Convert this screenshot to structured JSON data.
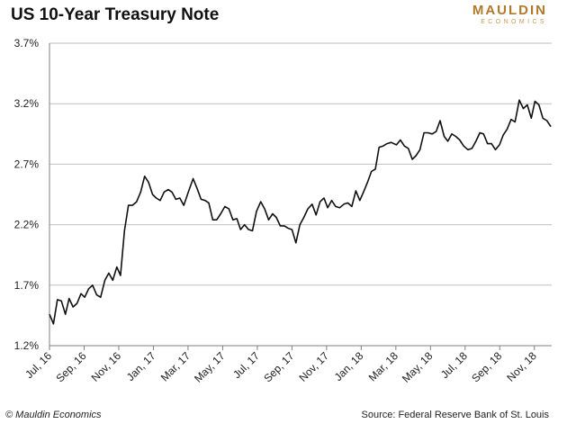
{
  "header": {
    "title": "US 10-Year Treasury Note",
    "logo_main": "MAULDIN",
    "logo_sub": "ECONOMICS"
  },
  "footer": {
    "copyright": "© Mauldin Economics",
    "source": "Source: Federal Reserve Bank of St. Louis"
  },
  "colors": {
    "line": "#111111",
    "grid": "#bfbfbf",
    "axis": "#7f7f7f",
    "brand": "#b07a2c"
  },
  "chart_data": {
    "type": "line",
    "title": "US 10-Year Treasury Note",
    "xlabel": "",
    "ylabel": "",
    "x_unit": "months since Jul 2016",
    "ylim": [
      1.2,
      3.7
    ],
    "yticks": [
      1.2,
      1.7,
      2.2,
      2.7,
      3.2,
      3.7
    ],
    "ytick_labels": [
      "1.2%",
      "1.7%",
      "2.2%",
      "2.7%",
      "3.2%",
      "3.7%"
    ],
    "xticks": [
      "Jul, 16",
      "Sep, 16",
      "Nov, 16",
      "Jan, 17",
      "Mar, 17",
      "May, 17",
      "Jul, 17",
      "Sep, 17",
      "Nov, 17",
      "Jan, 18",
      "Mar, 18",
      "May, 18",
      "Jul, 18",
      "Sep, 18",
      "Nov, 18"
    ],
    "grid": "horizontal",
    "legend": "none",
    "series": [
      {
        "values": [
          [
            "2016-07-01",
            1.46
          ],
          [
            "2016-07-08",
            1.38
          ],
          [
            "2016-07-15",
            1.58
          ],
          [
            "2016-07-22",
            1.57
          ],
          [
            "2016-07-29",
            1.46
          ],
          [
            "2016-08-05",
            1.59
          ],
          [
            "2016-08-12",
            1.52
          ],
          [
            "2016-08-19",
            1.55
          ],
          [
            "2016-08-26",
            1.63
          ],
          [
            "2016-09-02",
            1.6
          ],
          [
            "2016-09-09",
            1.67
          ],
          [
            "2016-09-16",
            1.7
          ],
          [
            "2016-09-23",
            1.62
          ],
          [
            "2016-09-30",
            1.6
          ],
          [
            "2016-10-07",
            1.74
          ],
          [
            "2016-10-14",
            1.8
          ],
          [
            "2016-10-21",
            1.74
          ],
          [
            "2016-10-28",
            1.85
          ],
          [
            "2016-11-04",
            1.78
          ],
          [
            "2016-11-11",
            2.15
          ],
          [
            "2016-11-18",
            2.36
          ],
          [
            "2016-11-25",
            2.36
          ],
          [
            "2016-12-02",
            2.39
          ],
          [
            "2016-12-09",
            2.47
          ],
          [
            "2016-12-16",
            2.6
          ],
          [
            "2016-12-23",
            2.55
          ],
          [
            "2016-12-30",
            2.45
          ],
          [
            "2017-01-06",
            2.42
          ],
          [
            "2017-01-13",
            2.4
          ],
          [
            "2017-01-20",
            2.47
          ],
          [
            "2017-01-27",
            2.49
          ],
          [
            "2017-02-03",
            2.47
          ],
          [
            "2017-02-10",
            2.41
          ],
          [
            "2017-02-17",
            2.42
          ],
          [
            "2017-02-24",
            2.36
          ],
          [
            "2017-03-03",
            2.49
          ],
          [
            "2017-03-10",
            2.58
          ],
          [
            "2017-03-17",
            2.5
          ],
          [
            "2017-03-24",
            2.41
          ],
          [
            "2017-03-31",
            2.4
          ],
          [
            "2017-04-07",
            2.38
          ],
          [
            "2017-04-14",
            2.24
          ],
          [
            "2017-04-21",
            2.24
          ],
          [
            "2017-04-28",
            2.29
          ],
          [
            "2017-05-05",
            2.35
          ],
          [
            "2017-05-12",
            2.33
          ],
          [
            "2017-05-19",
            2.24
          ],
          [
            "2017-05-26",
            2.25
          ],
          [
            "2017-06-02",
            2.16
          ],
          [
            "2017-06-09",
            2.2
          ],
          [
            "2017-06-16",
            2.16
          ],
          [
            "2017-06-23",
            2.15
          ],
          [
            "2017-06-30",
            2.31
          ],
          [
            "2017-07-07",
            2.39
          ],
          [
            "2017-07-14",
            2.33
          ],
          [
            "2017-07-21",
            2.24
          ],
          [
            "2017-07-28",
            2.29
          ],
          [
            "2017-08-04",
            2.26
          ],
          [
            "2017-08-11",
            2.19
          ],
          [
            "2017-08-18",
            2.19
          ],
          [
            "2017-08-25",
            2.17
          ],
          [
            "2017-09-01",
            2.16
          ],
          [
            "2017-09-08",
            2.05
          ],
          [
            "2017-09-15",
            2.2
          ],
          [
            "2017-09-22",
            2.26
          ],
          [
            "2017-09-29",
            2.33
          ],
          [
            "2017-10-06",
            2.37
          ],
          [
            "2017-10-13",
            2.28
          ],
          [
            "2017-10-20",
            2.39
          ],
          [
            "2017-10-27",
            2.42
          ],
          [
            "2017-11-03",
            2.34
          ],
          [
            "2017-11-10",
            2.4
          ],
          [
            "2017-11-17",
            2.35
          ],
          [
            "2017-11-24",
            2.34
          ],
          [
            "2017-12-01",
            2.37
          ],
          [
            "2017-12-08",
            2.38
          ],
          [
            "2017-12-15",
            2.35
          ],
          [
            "2017-12-22",
            2.48
          ],
          [
            "2017-12-29",
            2.4
          ],
          [
            "2018-01-05",
            2.47
          ],
          [
            "2018-01-12",
            2.55
          ],
          [
            "2018-01-19",
            2.64
          ],
          [
            "2018-01-26",
            2.66
          ],
          [
            "2018-02-02",
            2.84
          ],
          [
            "2018-02-09",
            2.85
          ],
          [
            "2018-02-16",
            2.87
          ],
          [
            "2018-02-23",
            2.88
          ],
          [
            "2018-03-02",
            2.86
          ],
          [
            "2018-03-09",
            2.9
          ],
          [
            "2018-03-16",
            2.85
          ],
          [
            "2018-03-23",
            2.83
          ],
          [
            "2018-03-30",
            2.74
          ],
          [
            "2018-04-06",
            2.77
          ],
          [
            "2018-04-13",
            2.82
          ],
          [
            "2018-04-20",
            2.96
          ],
          [
            "2018-04-27",
            2.96
          ],
          [
            "2018-05-04",
            2.95
          ],
          [
            "2018-05-11",
            2.97
          ],
          [
            "2018-05-18",
            3.06
          ],
          [
            "2018-05-25",
            2.93
          ],
          [
            "2018-06-01",
            2.89
          ],
          [
            "2018-06-08",
            2.95
          ],
          [
            "2018-06-15",
            2.93
          ],
          [
            "2018-06-22",
            2.9
          ],
          [
            "2018-06-29",
            2.85
          ],
          [
            "2018-07-06",
            2.82
          ],
          [
            "2018-07-13",
            2.83
          ],
          [
            "2018-07-20",
            2.89
          ],
          [
            "2018-07-27",
            2.96
          ],
          [
            "2018-08-03",
            2.95
          ],
          [
            "2018-08-10",
            2.87
          ],
          [
            "2018-08-17",
            2.87
          ],
          [
            "2018-08-24",
            2.82
          ],
          [
            "2018-08-31",
            2.86
          ],
          [
            "2018-09-07",
            2.94
          ],
          [
            "2018-09-14",
            2.99
          ],
          [
            "2018-09-21",
            3.07
          ],
          [
            "2018-09-28",
            3.05
          ],
          [
            "2018-10-05",
            3.23
          ],
          [
            "2018-10-12",
            3.16
          ],
          [
            "2018-10-19",
            3.19
          ],
          [
            "2018-10-26",
            3.08
          ],
          [
            "2018-11-02",
            3.22
          ],
          [
            "2018-11-09",
            3.19
          ],
          [
            "2018-11-16",
            3.08
          ],
          [
            "2018-11-23",
            3.06
          ],
          [
            "2018-11-30",
            3.01
          ]
        ]
      }
    ]
  }
}
